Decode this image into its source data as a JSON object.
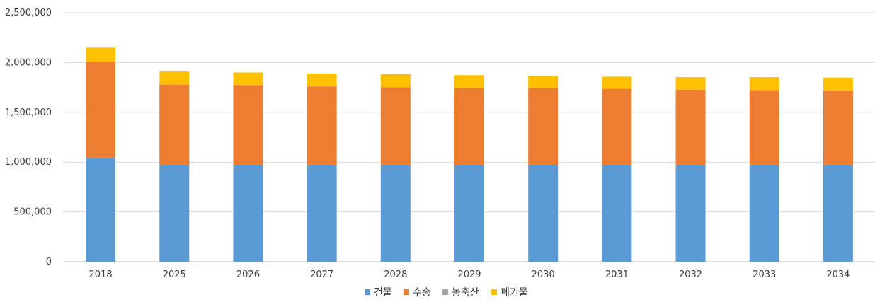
{
  "chart_data": {
    "type": "bar",
    "stacked": true,
    "categories": [
      "2018",
      "2025",
      "2026",
      "2027",
      "2028",
      "2029",
      "2030",
      "2031",
      "2032",
      "2033",
      "2034"
    ],
    "series": [
      {
        "name": "건물",
        "color": "#5b9bd5",
        "values": [
          1045000,
          968000,
          968000,
          968000,
          968000,
          968000,
          968000,
          968000,
          968000,
          968000,
          968000
        ]
      },
      {
        "name": "수송",
        "color": "#ed7d31",
        "values": [
          965000,
          810000,
          805000,
          792000,
          783000,
          775000,
          775000,
          768000,
          760000,
          755000,
          752000
        ]
      },
      {
        "name": "농축산",
        "color": "#a5a5a5",
        "values": [
          0,
          0,
          0,
          0,
          0,
          0,
          0,
          0,
          0,
          0,
          0
        ]
      },
      {
        "name": "폐기물",
        "color": "#ffc000",
        "values": [
          140000,
          132000,
          127000,
          130000,
          132000,
          130000,
          122000,
          122000,
          125000,
          130000,
          128000
        ]
      }
    ],
    "ylim": [
      0,
      2500000
    ],
    "yticks": [
      "0",
      "500,000",
      "1,000,000",
      "1,500,000",
      "2,000,000",
      "2,500,000"
    ],
    "ytick_values": [
      0,
      500000,
      1000000,
      1500000,
      2000000,
      2500000
    ],
    "grid": true,
    "legend_position": "bottom"
  }
}
